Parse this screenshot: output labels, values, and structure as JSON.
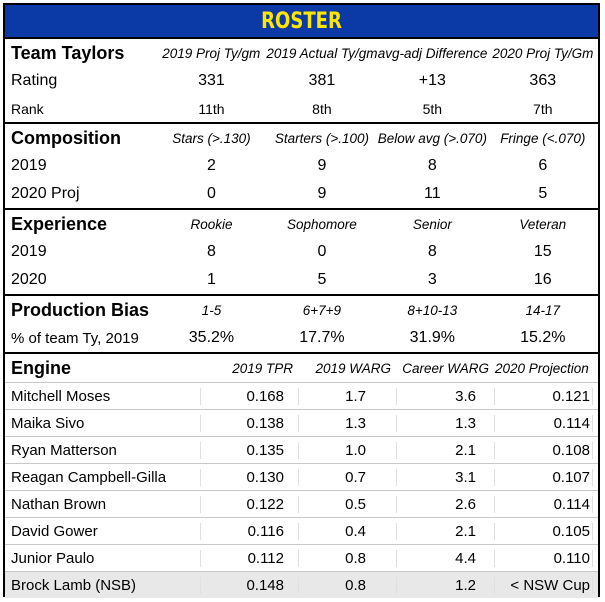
{
  "title": "ROSTER",
  "team": {
    "label": "Team Taylors",
    "columns": [
      "2019 Proj Ty/gm",
      "2019 Actual Ty/gm",
      "avg-adj Difference",
      "2020 Proj Ty/Gm"
    ],
    "rows": [
      {
        "label": "Rating",
        "values": [
          "331",
          "381",
          "+13",
          "363"
        ]
      },
      {
        "label": "Rank",
        "values": [
          "11th",
          "8th",
          "5th",
          "7th"
        ]
      }
    ]
  },
  "composition": {
    "label": "Composition",
    "columns": [
      "Stars (>.130)",
      "Starters (>.100)",
      "Below avg (>.070)",
      "Fringe (<.070)"
    ],
    "rows": [
      {
        "label": "2019",
        "values": [
          "2",
          "9",
          "8",
          "6"
        ]
      },
      {
        "label": "2020 Proj",
        "values": [
          "0",
          "9",
          "11",
          "5"
        ]
      }
    ]
  },
  "experience": {
    "label": "Experience",
    "columns": [
      "Rookie",
      "Sophomore",
      "Senior",
      "Veteran"
    ],
    "rows": [
      {
        "label": "2019",
        "values": [
          "8",
          "0",
          "8",
          "15"
        ]
      },
      {
        "label": "2020",
        "values": [
          "1",
          "5",
          "3",
          "16"
        ]
      }
    ]
  },
  "production": {
    "label": "Production Bias",
    "columns": [
      "1-5",
      "6+7+9",
      "8+10-13",
      "14-17"
    ],
    "rows": [
      {
        "label": "% of team Ty, 2019",
        "values": [
          "35.2%",
          "17.7%",
          "31.9%",
          "15.2%"
        ]
      }
    ]
  },
  "engine": {
    "label": "Engine",
    "columns": [
      "2019 TPR",
      "2019 WARG",
      "Career WARG",
      "2020 Projection"
    ],
    "players": [
      {
        "name": "Mitchell Moses",
        "values": [
          "0.168",
          "1.7",
          "3.6",
          "0.121"
        ]
      },
      {
        "name": "Maika Sivo",
        "values": [
          "0.138",
          "1.3",
          "1.3",
          "0.114"
        ]
      },
      {
        "name": "Ryan Matterson",
        "values": [
          "0.135",
          "1.0",
          "2.1",
          "0.108"
        ]
      },
      {
        "name": "Reagan Campbell-Gilla",
        "values": [
          "0.130",
          "0.7",
          "3.1",
          "0.107"
        ]
      },
      {
        "name": "Nathan Brown",
        "values": [
          "0.122",
          "0.5",
          "2.6",
          "0.114"
        ]
      },
      {
        "name": "David Gower",
        "values": [
          "0.116",
          "0.4",
          "2.1",
          "0.105"
        ]
      },
      {
        "name": "Junior Paulo",
        "values": [
          "0.112",
          "0.8",
          "4.4",
          "0.110"
        ]
      },
      {
        "name": "Brock Lamb (NSB)",
        "values": [
          "0.148",
          "0.8",
          "1.2",
          "< NSW Cup"
        ]
      }
    ]
  },
  "colors": {
    "banner_bg": "#0b3aa6",
    "banner_text": "#ffe600"
  }
}
